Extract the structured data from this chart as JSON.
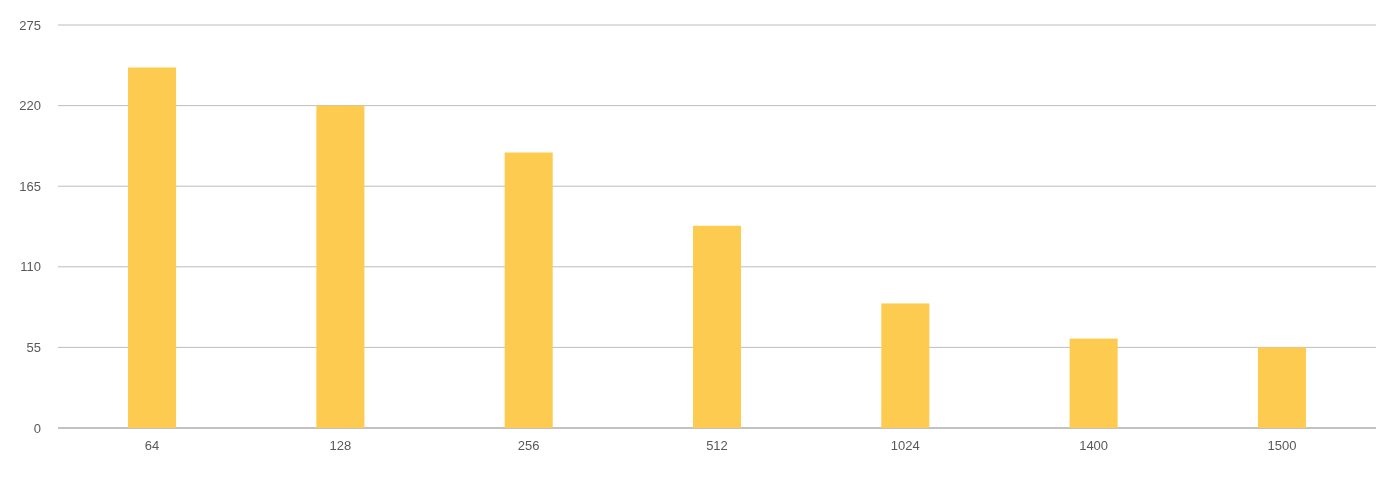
{
  "chart_data": {
    "type": "bar",
    "categories": [
      "64",
      "128",
      "256",
      "512",
      "1024",
      "1400",
      "1500"
    ],
    "series": [
      {
        "color": "#fdcb4f",
        "values": [
          246,
          220,
          188,
          138,
          85,
          61,
          55
        ]
      }
    ],
    "ylim": [
      0,
      275
    ],
    "yticks": [
      0,
      55,
      110,
      165,
      220,
      275
    ],
    "grid": "y"
  }
}
